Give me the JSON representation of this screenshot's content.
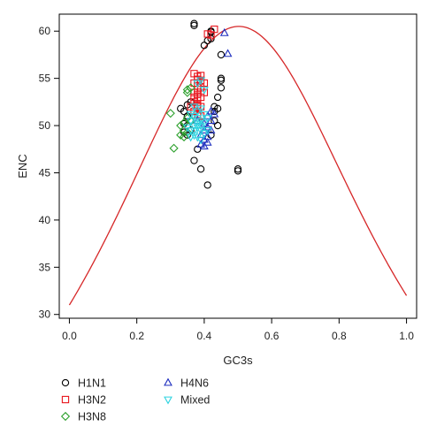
{
  "chart_data": {
    "type": "scatter",
    "title": "",
    "xlabel": "GC3s",
    "ylabel": "ENC",
    "xlim": [
      -0.03,
      1.03
    ],
    "ylim": [
      29.6,
      61.8
    ],
    "xticks": [
      0.0,
      0.2,
      0.4,
      0.6,
      0.8,
      1.0
    ],
    "xtick_labels": [
      "0.0",
      "0.2",
      "0.4",
      "0.6",
      "0.8",
      "1.0"
    ],
    "yticks": [
      30,
      35,
      40,
      45,
      50,
      55,
      60
    ],
    "ytick_labels": [
      "30",
      "35",
      "40",
      "45",
      "50",
      "55",
      "60"
    ],
    "grid": false,
    "legend_position": "bottom",
    "curve": {
      "x_range": [
        0.0,
        1.0
      ],
      "color": "#d62728"
    },
    "series": [
      {
        "name": "H1N1",
        "marker": "circle",
        "color": "#000000",
        "points": [
          [
            0.37,
            60.8
          ],
          [
            0.37,
            60.6
          ],
          [
            0.42,
            60.0
          ],
          [
            0.42,
            59.9
          ],
          [
            0.41,
            59.0
          ],
          [
            0.42,
            59.2
          ],
          [
            0.4,
            58.5
          ],
          [
            0.45,
            57.5
          ],
          [
            0.45,
            55.0
          ],
          [
            0.45,
            54.8
          ],
          [
            0.45,
            54.0
          ],
          [
            0.44,
            53.0
          ],
          [
            0.43,
            52.0
          ],
          [
            0.44,
            51.8
          ],
          [
            0.43,
            51.5
          ],
          [
            0.33,
            51.8
          ],
          [
            0.34,
            51.5
          ],
          [
            0.35,
            51.0
          ],
          [
            0.36,
            50.5
          ],
          [
            0.34,
            50.2
          ],
          [
            0.35,
            50.0
          ],
          [
            0.36,
            49.5
          ],
          [
            0.34,
            49.3
          ],
          [
            0.35,
            49.0
          ],
          [
            0.43,
            50.5
          ],
          [
            0.38,
            47.5
          ],
          [
            0.37,
            46.3
          ],
          [
            0.39,
            45.4
          ],
          [
            0.5,
            45.4
          ],
          [
            0.5,
            45.2
          ],
          [
            0.41,
            43.7
          ],
          [
            0.35,
            52.2
          ],
          [
            0.36,
            52.5
          ],
          [
            0.42,
            49.0
          ],
          [
            0.44,
            50.0
          ]
        ]
      },
      {
        "name": "H3N2",
        "marker": "square",
        "color": "#e8141c",
        "points": [
          [
            0.41,
            59.7
          ],
          [
            0.42,
            59.6
          ],
          [
            0.43,
            60.2
          ],
          [
            0.37,
            55.5
          ],
          [
            0.38,
            55.2
          ],
          [
            0.39,
            55.3
          ],
          [
            0.38,
            54.9
          ],
          [
            0.37,
            54.5
          ],
          [
            0.38,
            54.2
          ],
          [
            0.39,
            54.0
          ],
          [
            0.38,
            53.8
          ],
          [
            0.37,
            53.5
          ],
          [
            0.38,
            53.3
          ],
          [
            0.39,
            53.0
          ],
          [
            0.38,
            52.8
          ],
          [
            0.37,
            52.5
          ],
          [
            0.38,
            52.2
          ],
          [
            0.39,
            52.0
          ],
          [
            0.38,
            51.8
          ],
          [
            0.37,
            51.5
          ],
          [
            0.38,
            51.2
          ],
          [
            0.39,
            51.0
          ],
          [
            0.36,
            52.0
          ],
          [
            0.4,
            53.5
          ],
          [
            0.4,
            54.5
          ],
          [
            0.37,
            53.0
          ],
          [
            0.39,
            54.8
          ],
          [
            0.38,
            52.0
          ]
        ]
      },
      {
        "name": "H3N8",
        "marker": "diamond",
        "color": "#2ca02c",
        "points": [
          [
            0.35,
            53.8
          ],
          [
            0.35,
            53.5
          ],
          [
            0.36,
            54.0
          ],
          [
            0.3,
            51.3
          ],
          [
            0.34,
            50.3
          ],
          [
            0.33,
            50.0
          ],
          [
            0.34,
            49.5
          ],
          [
            0.35,
            49.3
          ],
          [
            0.33,
            49.0
          ],
          [
            0.34,
            48.8
          ],
          [
            0.31,
            47.6
          ],
          [
            0.35,
            50.8
          ],
          [
            0.36,
            50.5
          ]
        ]
      },
      {
        "name": "H4N6",
        "marker": "triangle-up",
        "color": "#1f2fbf",
        "points": [
          [
            0.46,
            59.8
          ],
          [
            0.47,
            57.6
          ],
          [
            0.42,
            51.5
          ],
          [
            0.43,
            51.2
          ],
          [
            0.41,
            51.0
          ],
          [
            0.42,
            50.5
          ],
          [
            0.4,
            50.2
          ],
          [
            0.41,
            49.8
          ],
          [
            0.4,
            49.5
          ],
          [
            0.39,
            49.0
          ],
          [
            0.41,
            48.8
          ],
          [
            0.4,
            48.5
          ],
          [
            0.39,
            48.0
          ],
          [
            0.4,
            47.8
          ],
          [
            0.41,
            48.2
          ],
          [
            0.42,
            49.5
          ],
          [
            0.38,
            50.5
          ]
        ]
      },
      {
        "name": "Mixed",
        "marker": "triangle-down",
        "color": "#2fd3e0",
        "points": [
          [
            0.39,
            54.8
          ],
          [
            0.38,
            54.5
          ],
          [
            0.4,
            53.8
          ],
          [
            0.37,
            52.0
          ],
          [
            0.38,
            51.5
          ],
          [
            0.39,
            51.8
          ],
          [
            0.36,
            51.2
          ],
          [
            0.37,
            51.0
          ],
          [
            0.38,
            50.8
          ],
          [
            0.39,
            50.5
          ],
          [
            0.4,
            50.3
          ],
          [
            0.36,
            50.5
          ],
          [
            0.37,
            50.0
          ],
          [
            0.38,
            49.8
          ],
          [
            0.39,
            49.5
          ],
          [
            0.4,
            49.2
          ],
          [
            0.36,
            49.5
          ],
          [
            0.37,
            49.0
          ],
          [
            0.38,
            48.8
          ],
          [
            0.39,
            48.5
          ],
          [
            0.35,
            49.8
          ],
          [
            0.41,
            50.8
          ],
          [
            0.4,
            51.2
          ],
          [
            0.38,
            50.2
          ],
          [
            0.37,
            49.5
          ],
          [
            0.39,
            50.0
          ],
          [
            0.36,
            48.8
          ],
          [
            0.41,
            49.5
          ]
        ]
      }
    ]
  }
}
